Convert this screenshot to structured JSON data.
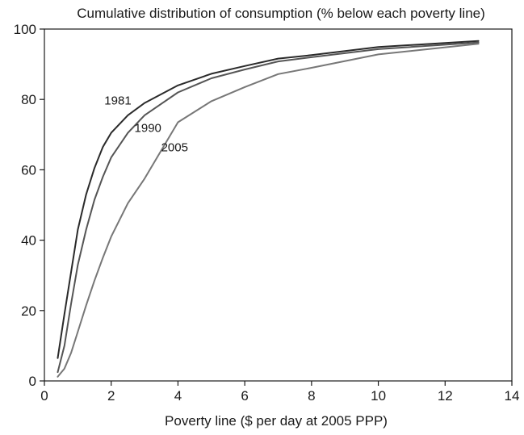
{
  "chart_data": {
    "type": "line",
    "title": "Cumulative distribution of consumption (% below each poverty line)",
    "xlabel": "Poverty line ($ per day at 2005 PPP)",
    "ylabel": "",
    "xlim": [
      0,
      14
    ],
    "ylim": [
      0,
      100
    ],
    "xticks": [
      0,
      2,
      4,
      6,
      8,
      10,
      12,
      14
    ],
    "yticks": [
      0,
      20,
      40,
      60,
      80,
      100
    ],
    "grid": false,
    "legend": "inline labels",
    "series": [
      {
        "name": "1981",
        "color": "#2a2a2a",
        "x": [
          0.4,
          0.6,
          0.8,
          1.0,
          1.25,
          1.5,
          1.75,
          2.0,
          2.5,
          3.0,
          4.0,
          5.0,
          6.0,
          7.0,
          8.0,
          10.0,
          13.0
        ],
        "y": [
          6.5,
          19,
          31,
          43,
          53,
          60.5,
          66.5,
          70.5,
          75.5,
          79,
          84,
          87.3,
          89.5,
          91.6,
          92.6,
          94.9,
          96.6
        ]
      },
      {
        "name": "1990",
        "color": "#555555",
        "x": [
          0.4,
          0.6,
          0.8,
          1.0,
          1.25,
          1.5,
          1.75,
          2.0,
          2.5,
          3.0,
          4.0,
          5.0,
          6.0,
          7.0,
          8.0,
          10.0,
          13.0
        ],
        "y": [
          2.5,
          10,
          22,
          33,
          43,
          51.5,
          58,
          63.5,
          70.5,
          75.5,
          82,
          86,
          88.5,
          90.8,
          92,
          94.3,
          96.2
        ]
      },
      {
        "name": "2005",
        "color": "#777777",
        "x": [
          0.4,
          0.6,
          0.8,
          1.0,
          1.25,
          1.5,
          1.75,
          2.0,
          2.5,
          3.0,
          4.0,
          5.0,
          6.0,
          7.0,
          8.0,
          10.0,
          13.0
        ],
        "y": [
          1.2,
          3.5,
          8,
          14,
          21.5,
          28.5,
          35,
          41,
          50.5,
          57.5,
          73.5,
          79.5,
          83.5,
          87.2,
          89,
          92.8,
          95.8
        ]
      }
    ],
    "annotations": [
      {
        "text": "1981",
        "x": 2.2,
        "y": 78.5
      },
      {
        "text": "1990",
        "x": 3.1,
        "y": 70.8
      },
      {
        "text": "2005",
        "x": 3.9,
        "y": 65.2
      }
    ]
  }
}
